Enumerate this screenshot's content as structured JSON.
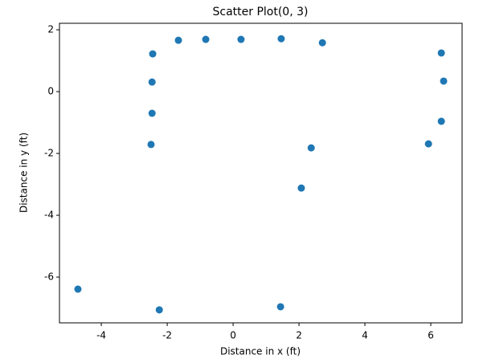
{
  "chart_data": {
    "type": "scatter",
    "title": "Scatter Plot(0, 3)",
    "x_label": "Distance in x (ft)",
    "y_label": "Distance in y (ft)",
    "color": "#1f77b4",
    "x": [
      -2.44,
      -1.66,
      -0.83,
      0.24,
      1.46,
      2.71,
      6.32,
      6.39,
      -2.46,
      -2.46,
      6.32,
      -2.49,
      5.93,
      2.37,
      2.07,
      -4.71,
      -2.24,
      1.44
    ],
    "values": [
      1.22,
      1.66,
      1.69,
      1.69,
      1.71,
      1.58,
      1.25,
      0.34,
      0.31,
      -0.7,
      -0.96,
      -1.71,
      -1.69,
      -1.82,
      -3.12,
      -6.39,
      -7.06,
      -6.96
    ],
    "xlim": [
      -5.27,
      6.95
    ],
    "ylim": [
      -7.48,
      2.21
    ],
    "xticks": [
      -4,
      -2,
      0,
      2,
      4,
      6
    ],
    "yticks": [
      -6,
      -4,
      -2,
      0,
      2
    ]
  }
}
